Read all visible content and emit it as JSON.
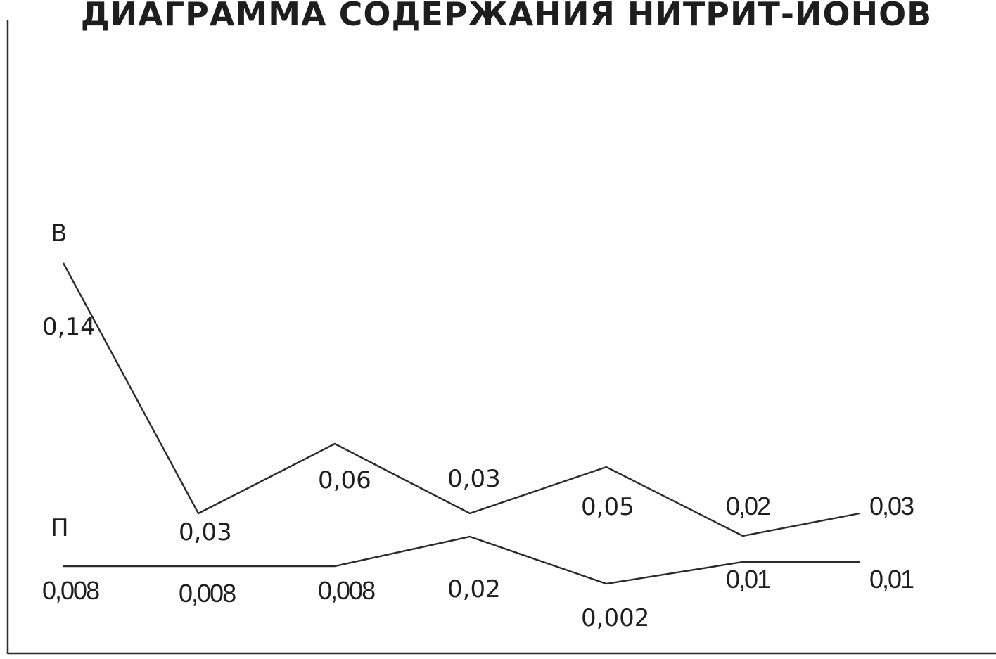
{
  "chart_data": {
    "type": "line",
    "title": "ДИАГРАММА СОДЕРЖАНИЯ НИТРИТ-ИОНОВ",
    "xlabel": "",
    "ylabel": "",
    "grid": false,
    "legend": "none",
    "x": [
      1,
      2,
      3,
      4,
      5,
      6,
      7
    ],
    "series": [
      {
        "name": "В",
        "values": [
          0.14,
          0.03,
          0.06,
          0.03,
          0.05,
          0.02,
          0.03
        ],
        "labels": [
          "0,14",
          "0,03",
          "0,06",
          "0,03",
          "0,05",
          "0,02",
          "0,03"
        ]
      },
      {
        "name": "П",
        "values": [
          0.008,
          0.008,
          0.008,
          0.02,
          0.002,
          0.01,
          0.01
        ],
        "labels": [
          "0,008",
          "0,008",
          "0,008",
          "0,02",
          "0,002",
          "0,01",
          "0,01"
        ]
      }
    ],
    "colors": {
      "line": "#2a2a2a",
      "text": "#1e1e1e",
      "background": "#ffffff"
    }
  }
}
